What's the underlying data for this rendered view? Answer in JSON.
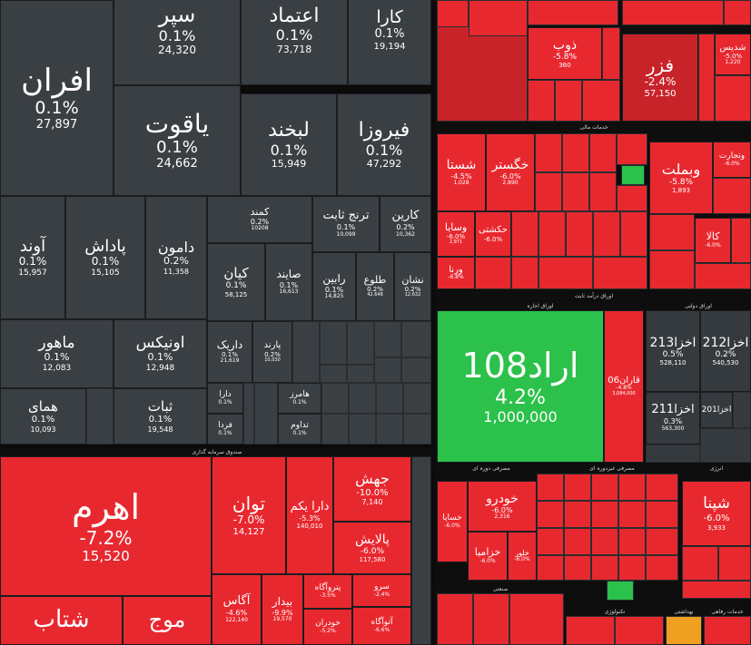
{
  "colors": {
    "positive": "#2bc14a",
    "negative": "#e8282f",
    "neutral": "#3a3f44"
  },
  "grey_tiles": [
    {
      "name": "سپر",
      "pct": "0.1%",
      "vol": "24,320"
    },
    {
      "name": "اعتماد",
      "pct": "0.1%",
      "vol": "73,718"
    },
    {
      "name": "کارا",
      "pct": "0.1%",
      "vol": "19,194"
    },
    {
      "name": "افران",
      "pct": "0.1%",
      "vol": "27,897"
    },
    {
      "name": "یاقوت",
      "pct": "0.1%",
      "vol": "24,662"
    },
    {
      "name": "لبخند",
      "pct": "0.1%",
      "vol": "15,949"
    },
    {
      "name": "فیروزا",
      "pct": "0.1%",
      "vol": "47,292"
    },
    {
      "name": "آوند",
      "pct": "0.1%",
      "vol": "15,957"
    },
    {
      "name": "پاداش",
      "pct": "0.1%",
      "vol": "15,105"
    },
    {
      "name": "دامون",
      "pct": "0.2%",
      "vol": "11,358"
    },
    {
      "name": "کمند",
      "pct": "0.2%",
      "vol": "10208"
    },
    {
      "name": "ترنج ثابت",
      "pct": "0.1%",
      "vol": "10,099"
    },
    {
      "name": "کارین",
      "pct": "0.2%",
      "vol": "10,362"
    },
    {
      "name": "کیان",
      "pct": "0.1%",
      "vol": "58,125"
    },
    {
      "name": "صایند",
      "pct": "0.1%",
      "vol": "16,613"
    },
    {
      "name": "رابین",
      "pct": "0.1%",
      "vol": "14,825"
    },
    {
      "name": "طلوع",
      "pct": "0.2%",
      "vol": "42,648"
    },
    {
      "name": "نشان",
      "pct": "0.2%",
      "vol": "12,632"
    },
    {
      "name": "ماهور",
      "pct": "0.1%",
      "vol": "12,083"
    },
    {
      "name": "اونیکس",
      "pct": "0.1%",
      "vol": "12,948"
    },
    {
      "name": "داریک",
      "pct": "0.1%",
      "vol": "21,619"
    },
    {
      "name": "پارند",
      "pct": "0.2%",
      "vol": "10,030"
    },
    {
      "name": "همای",
      "pct": "0.1%",
      "vol": "10,093"
    },
    {
      "name": "ثبات",
      "pct": "0.1%",
      "vol": "19,548"
    },
    {
      "name": "دارا",
      "pct": "0.1%",
      "vol": ""
    },
    {
      "name": "فردا",
      "pct": "0.1%",
      "vol": ""
    },
    {
      "name": "هامرز",
      "pct": "0.1%",
      "vol": ""
    },
    {
      "name": "تداوم",
      "pct": "0.1%",
      "vol": ""
    }
  ],
  "red_left": [
    {
      "name": "اهرم",
      "pct": "-7.2%",
      "vol": "15,520"
    },
    {
      "name": "توان",
      "pct": "-7.0%",
      "vol": "14,127"
    },
    {
      "name": "دارا یکم",
      "pct": "-5.3%",
      "vol": "140,010"
    },
    {
      "name": "جهش",
      "pct": "-10.0%",
      "vol": "7,140"
    },
    {
      "name": "پالایش",
      "pct": "-6.0%",
      "vol": "117,580"
    },
    {
      "name": "آگاس",
      "pct": "-4.6%",
      "vol": "122,140"
    },
    {
      "name": "بیدار",
      "pct": "-9.9%",
      "vol": "19,570"
    },
    {
      "name": "پتروآگاه",
      "pct": "-3.5%",
      "vol": ""
    },
    {
      "name": "خودران",
      "pct": "-5.2%",
      "vol": ""
    },
    {
      "name": "سرو",
      "pct": "-2.4%",
      "vol": ""
    },
    {
      "name": "آتوآگاه",
      "pct": "-6.6%",
      "vol": ""
    },
    {
      "name": "شتاب",
      "pct": "",
      "vol": ""
    },
    {
      "name": "موج",
      "pct": "",
      "vol": ""
    }
  ],
  "right_top": [
    {
      "name": "ذوب",
      "pct": "-5.8%",
      "vol": "360"
    },
    {
      "name": "فزر",
      "pct": "-2.4%",
      "vol": "57,150"
    },
    {
      "name": "شدیس",
      "pct": "-5.0%",
      "vol": "1,220"
    }
  ],
  "right_mid": [
    {
      "name": "شستا",
      "pct": "-4.5%",
      "vol": "1,028"
    },
    {
      "name": "خگستر",
      "pct": "-6.0%",
      "vol": "2,890"
    },
    {
      "name": "وبملت",
      "pct": "-5.8%",
      "vol": "1,893"
    },
    {
      "name": "وسایا",
      "pct": "-6.0%",
      "vol": "2,971"
    },
    {
      "name": "حکشتی",
      "pct": "-6.0%",
      "vol": ""
    },
    {
      "name": "ورنا",
      "pct": "-6.8%",
      "vol": ""
    },
    {
      "name": "کالا",
      "pct": "-6.0%",
      "vol": ""
    },
    {
      "name": "وتجارت",
      "pct": "-6.0%",
      "vol": ""
    }
  ],
  "right_headers": [
    "خدمات مالی",
    "اوراق درآمد ثابت",
    "اوراق اجاره",
    "اوراق دولتی",
    "مصرفی دوره ای",
    "مصرفی غیردوره ای",
    "انرژی",
    "صنعتی",
    "تکنولوژی",
    "بهداشتی",
    "خدمات رفاهی"
  ],
  "bonds": [
    {
      "name": "اراد108",
      "pct": "4.2%",
      "vol": "1,000,000"
    },
    {
      "name": "قاران06",
      "pct": "-4.8%",
      "vol": "3,084,000"
    },
    {
      "name": "اخزا213",
      "pct": "0.5%",
      "vol": "528,110"
    },
    {
      "name": "اخزا212",
      "pct": "0.2%",
      "vol": "540,530"
    },
    {
      "name": "اخزا211",
      "pct": "0.3%",
      "vol": "563,300"
    },
    {
      "name": "اخزا201",
      "pct": "",
      "vol": ""
    }
  ],
  "right_bottom": [
    {
      "name": "خودرو",
      "pct": "-6.0%",
      "vol": "2,316"
    },
    {
      "name": "خزامیا",
      "pct": "-6.0%",
      "vol": ""
    },
    {
      "name": "خساپا",
      "pct": "-6.0%",
      "vol": ""
    },
    {
      "name": "خلور",
      "pct": "-6.0%",
      "vol": ""
    },
    {
      "name": "شپنا",
      "pct": "-6.0%",
      "vol": "3,933"
    }
  ],
  "fund_header": "صندوق سرمایه گذاری"
}
